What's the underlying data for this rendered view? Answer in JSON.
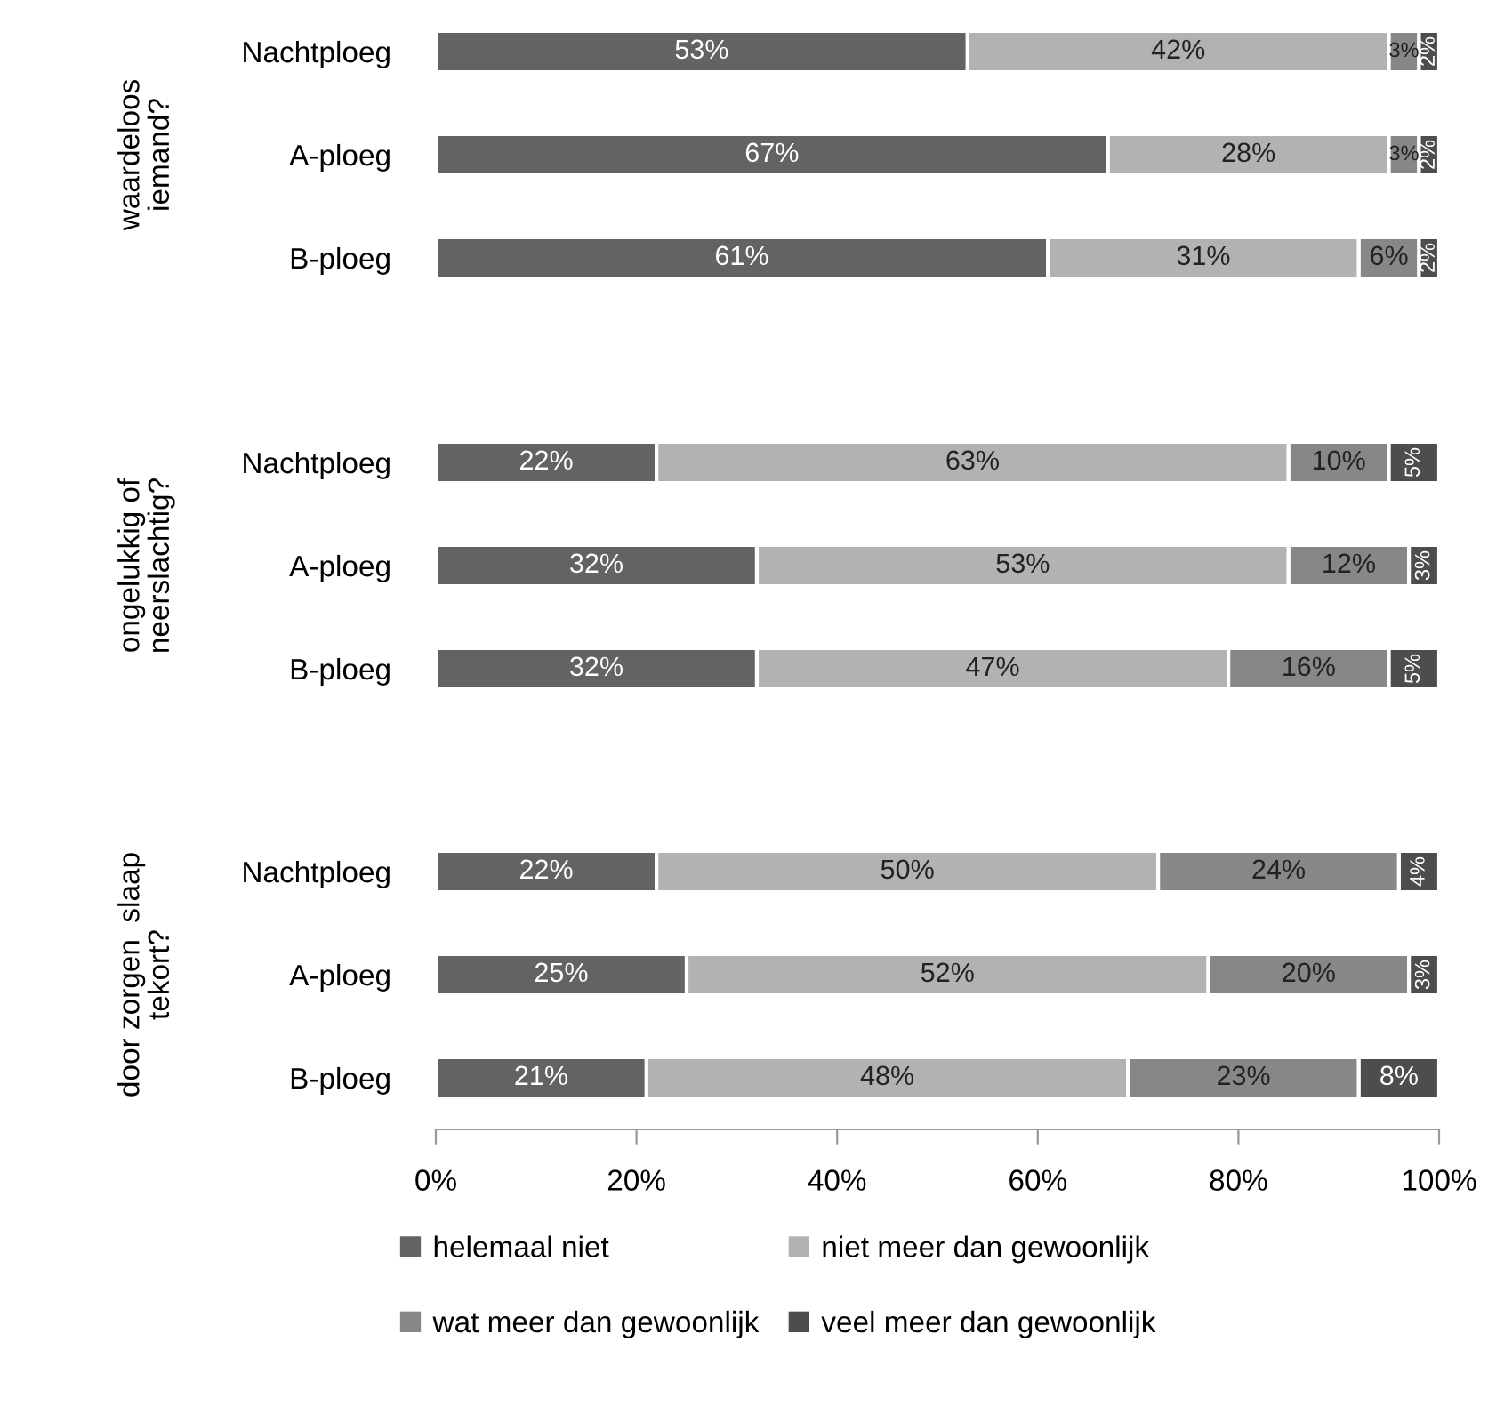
{
  "chart_data": [
    {
      "type": "bar",
      "orientation": "horizontal",
      "stacked": true,
      "ylabel": "waardeloos\niemand?",
      "categories": [
        "Nachtploeg",
        "A-ploeg",
        "B-ploeg"
      ],
      "xlim": [
        0,
        100
      ],
      "tick_labels": "y",
      "grid": false,
      "legend": false,
      "series": [
        {
          "color": "#636363",
          "values": [
            53,
            67,
            61
          ],
          "value_labels": [
            "53%",
            "67%",
            "61%"
          ]
        },
        {
          "color": "#b2b2b2",
          "values": [
            42,
            28,
            31
          ],
          "value_labels": [
            "42%",
            "28%",
            "31%"
          ]
        },
        {
          "color": "#878787",
          "values": [
            3,
            3,
            6
          ],
          "value_labels": [
            "3%",
            "3%",
            "6%"
          ]
        },
        {
          "color": "#4d4d4d",
          "values": [
            2,
            2,
            2
          ],
          "value_labels": [
            "2%",
            "2%",
            "2%"
          ]
        }
      ]
    },
    {
      "type": "bar",
      "orientation": "horizontal",
      "stacked": true,
      "ylabel": "ongelukkig of\nneerslachtig?",
      "categories": [
        "Nachtploeg",
        "A-ploeg",
        "B-ploeg"
      ],
      "xlim": [
        0,
        100
      ],
      "tick_labels": "y",
      "grid": false,
      "legend": false,
      "series": [
        {
          "color": "#636363",
          "values": [
            22,
            32,
            32
          ],
          "value_labels": [
            "22%",
            "32%",
            "32%"
          ]
        },
        {
          "color": "#b2b2b2",
          "values": [
            63,
            53,
            47
          ],
          "value_labels": [
            "63%",
            "53%",
            "47%"
          ]
        },
        {
          "color": "#878787",
          "values": [
            10,
            12,
            16
          ],
          "value_labels": [
            "10%",
            "12%",
            "16%"
          ]
        },
        {
          "color": "#4d4d4d",
          "values": [
            5,
            3,
            5
          ],
          "value_labels": [
            "5%",
            "3%",
            "5%"
          ]
        }
      ]
    },
    {
      "type": "bar",
      "orientation": "horizontal",
      "stacked": true,
      "ylabel": "door zorgen  slaap\ntekort?",
      "categories": [
        "Nachtploeg",
        "A-ploeg",
        "B-ploeg"
      ],
      "xlim": [
        0,
        100
      ],
      "xticks": [
        {
          "value": 0,
          "label": "0%"
        },
        {
          "value": 20,
          "label": "20%"
        },
        {
          "value": 40,
          "label": "40%"
        },
        {
          "value": 60,
          "label": "60%"
        },
        {
          "value": 80,
          "label": "80%"
        },
        {
          "value": 100,
          "label": "100%"
        }
      ],
      "grid": false,
      "legend": "bottom",
      "series": [
        {
          "name": "helemaal niet",
          "color": "#636363",
          "values": [
            22,
            25,
            21
          ],
          "value_labels": [
            "22%",
            "25%",
            "21%"
          ]
        },
        {
          "name": "niet meer dan gewoonlijk",
          "color": "#b2b2b2",
          "values": [
            50,
            52,
            48
          ],
          "value_labels": [
            "50%",
            "52%",
            "48%"
          ]
        },
        {
          "name": "wat meer dan gewoonlijk",
          "color": "#878787",
          "values": [
            24,
            20,
            23
          ],
          "value_labels": [
            "24%",
            "20%",
            "23%"
          ]
        },
        {
          "name": "veel meer dan gewoonlijk",
          "color": "#4d4d4d",
          "values": [
            4,
            3,
            8
          ],
          "value_labels": [
            "4%",
            "3%",
            "8%"
          ]
        }
      ]
    }
  ]
}
